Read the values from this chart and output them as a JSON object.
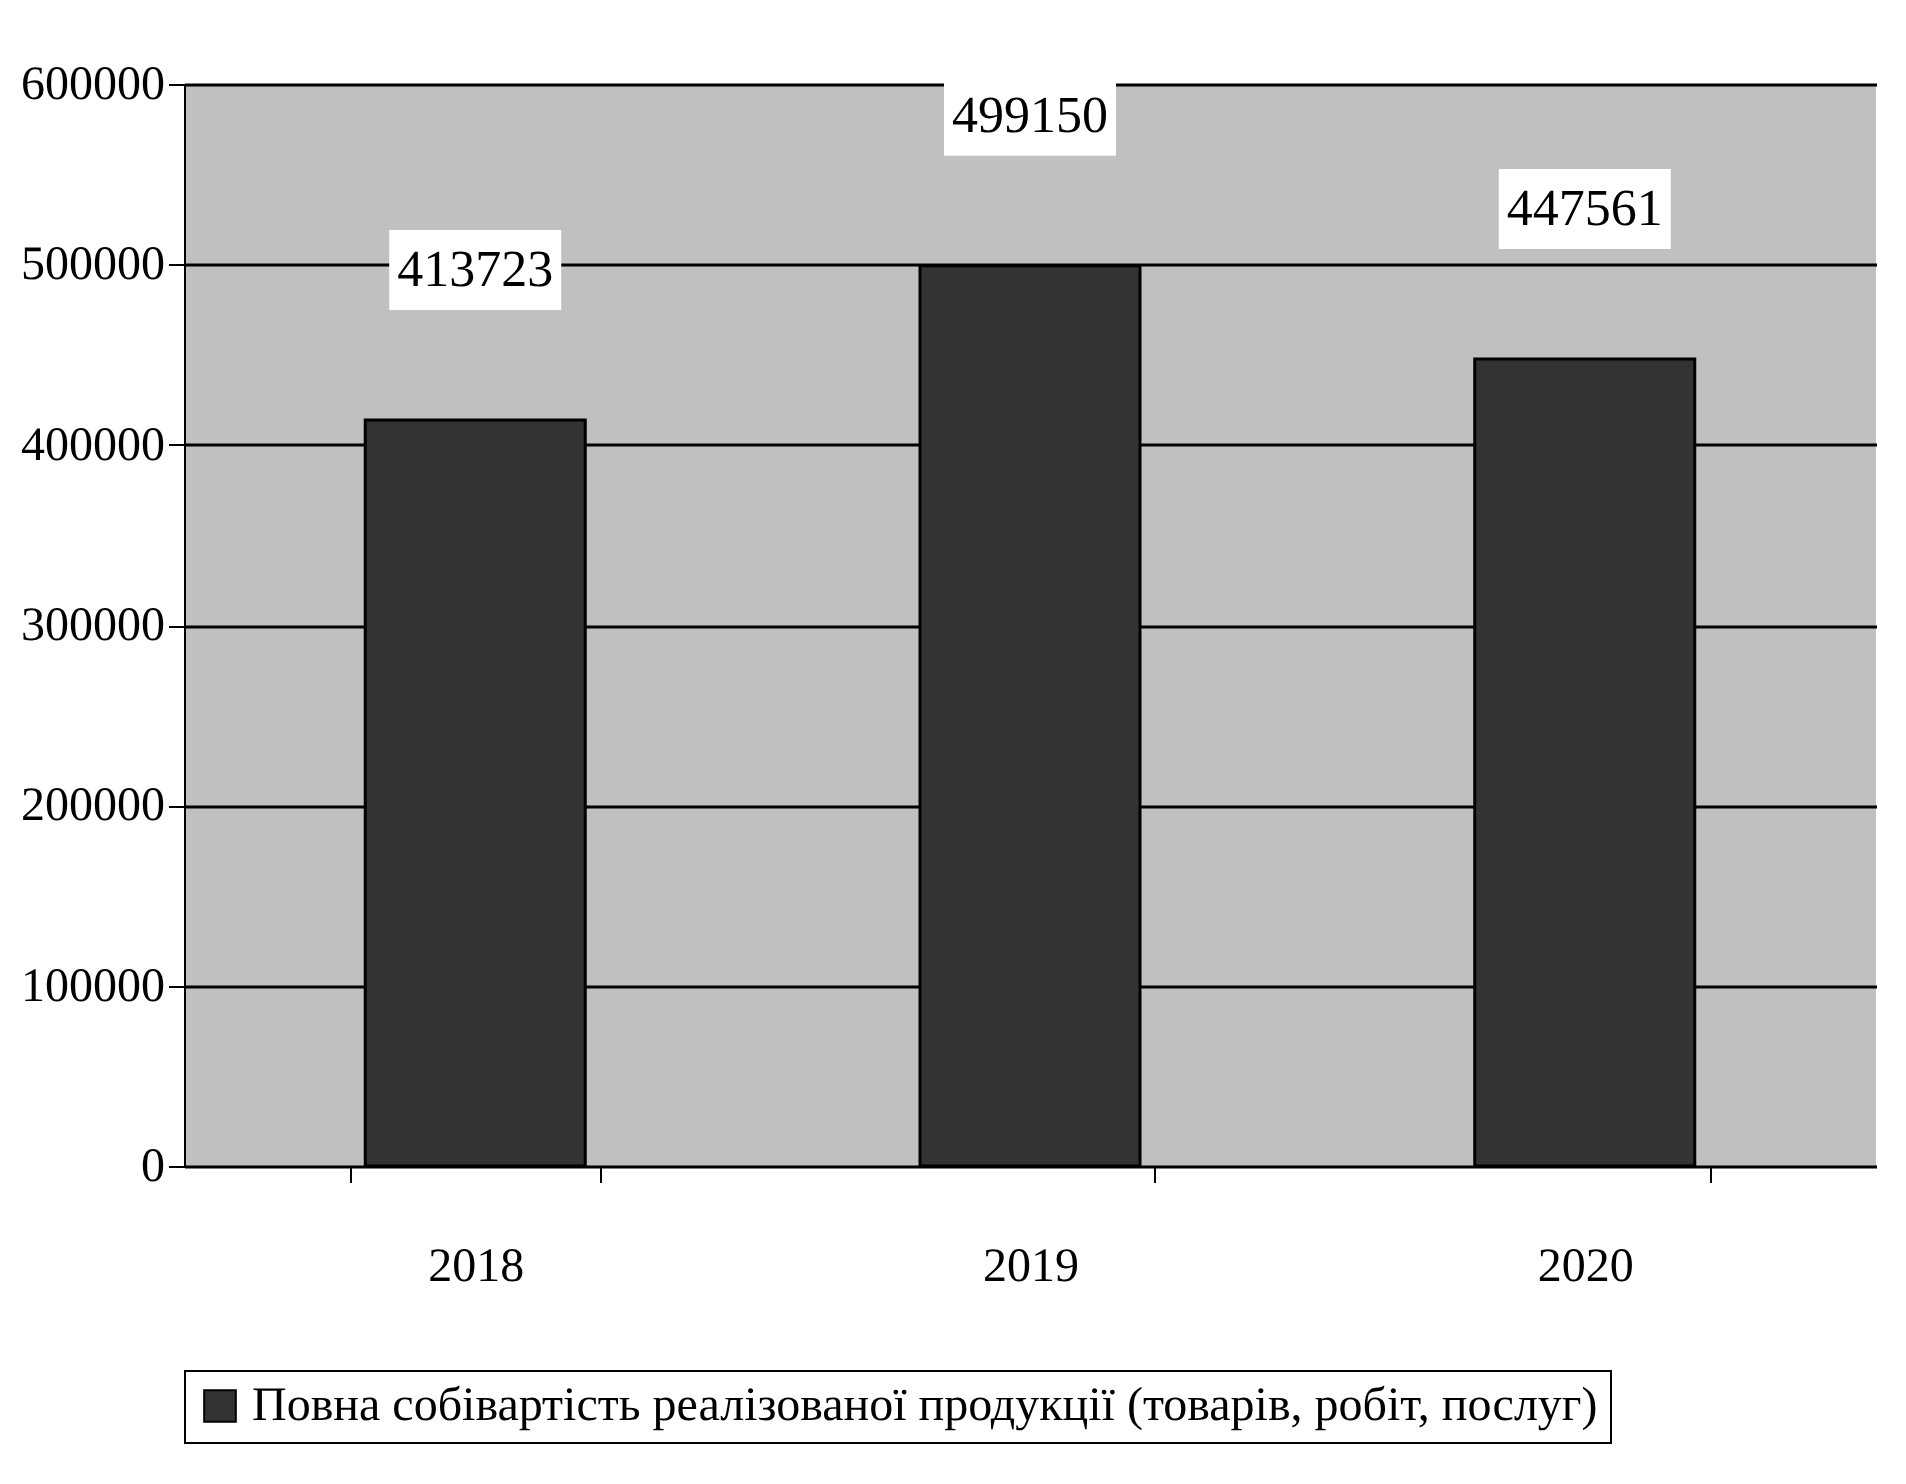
{
  "chart_data": {
    "type": "bar",
    "categories": [
      "2018",
      "2019",
      "2020"
    ],
    "series": [
      {
        "name": "Повна собівартість реалізованої продукції (товарів, робіт, послуг)",
        "color": "#333333",
        "values": [
          413723,
          499150,
          447561
        ]
      }
    ],
    "ylim": [
      0,
      600000
    ],
    "yticks": [
      0,
      100000,
      200000,
      300000,
      400000,
      500000,
      600000
    ],
    "grid": "y",
    "legend": "bottom",
    "data_labels": true
  }
}
